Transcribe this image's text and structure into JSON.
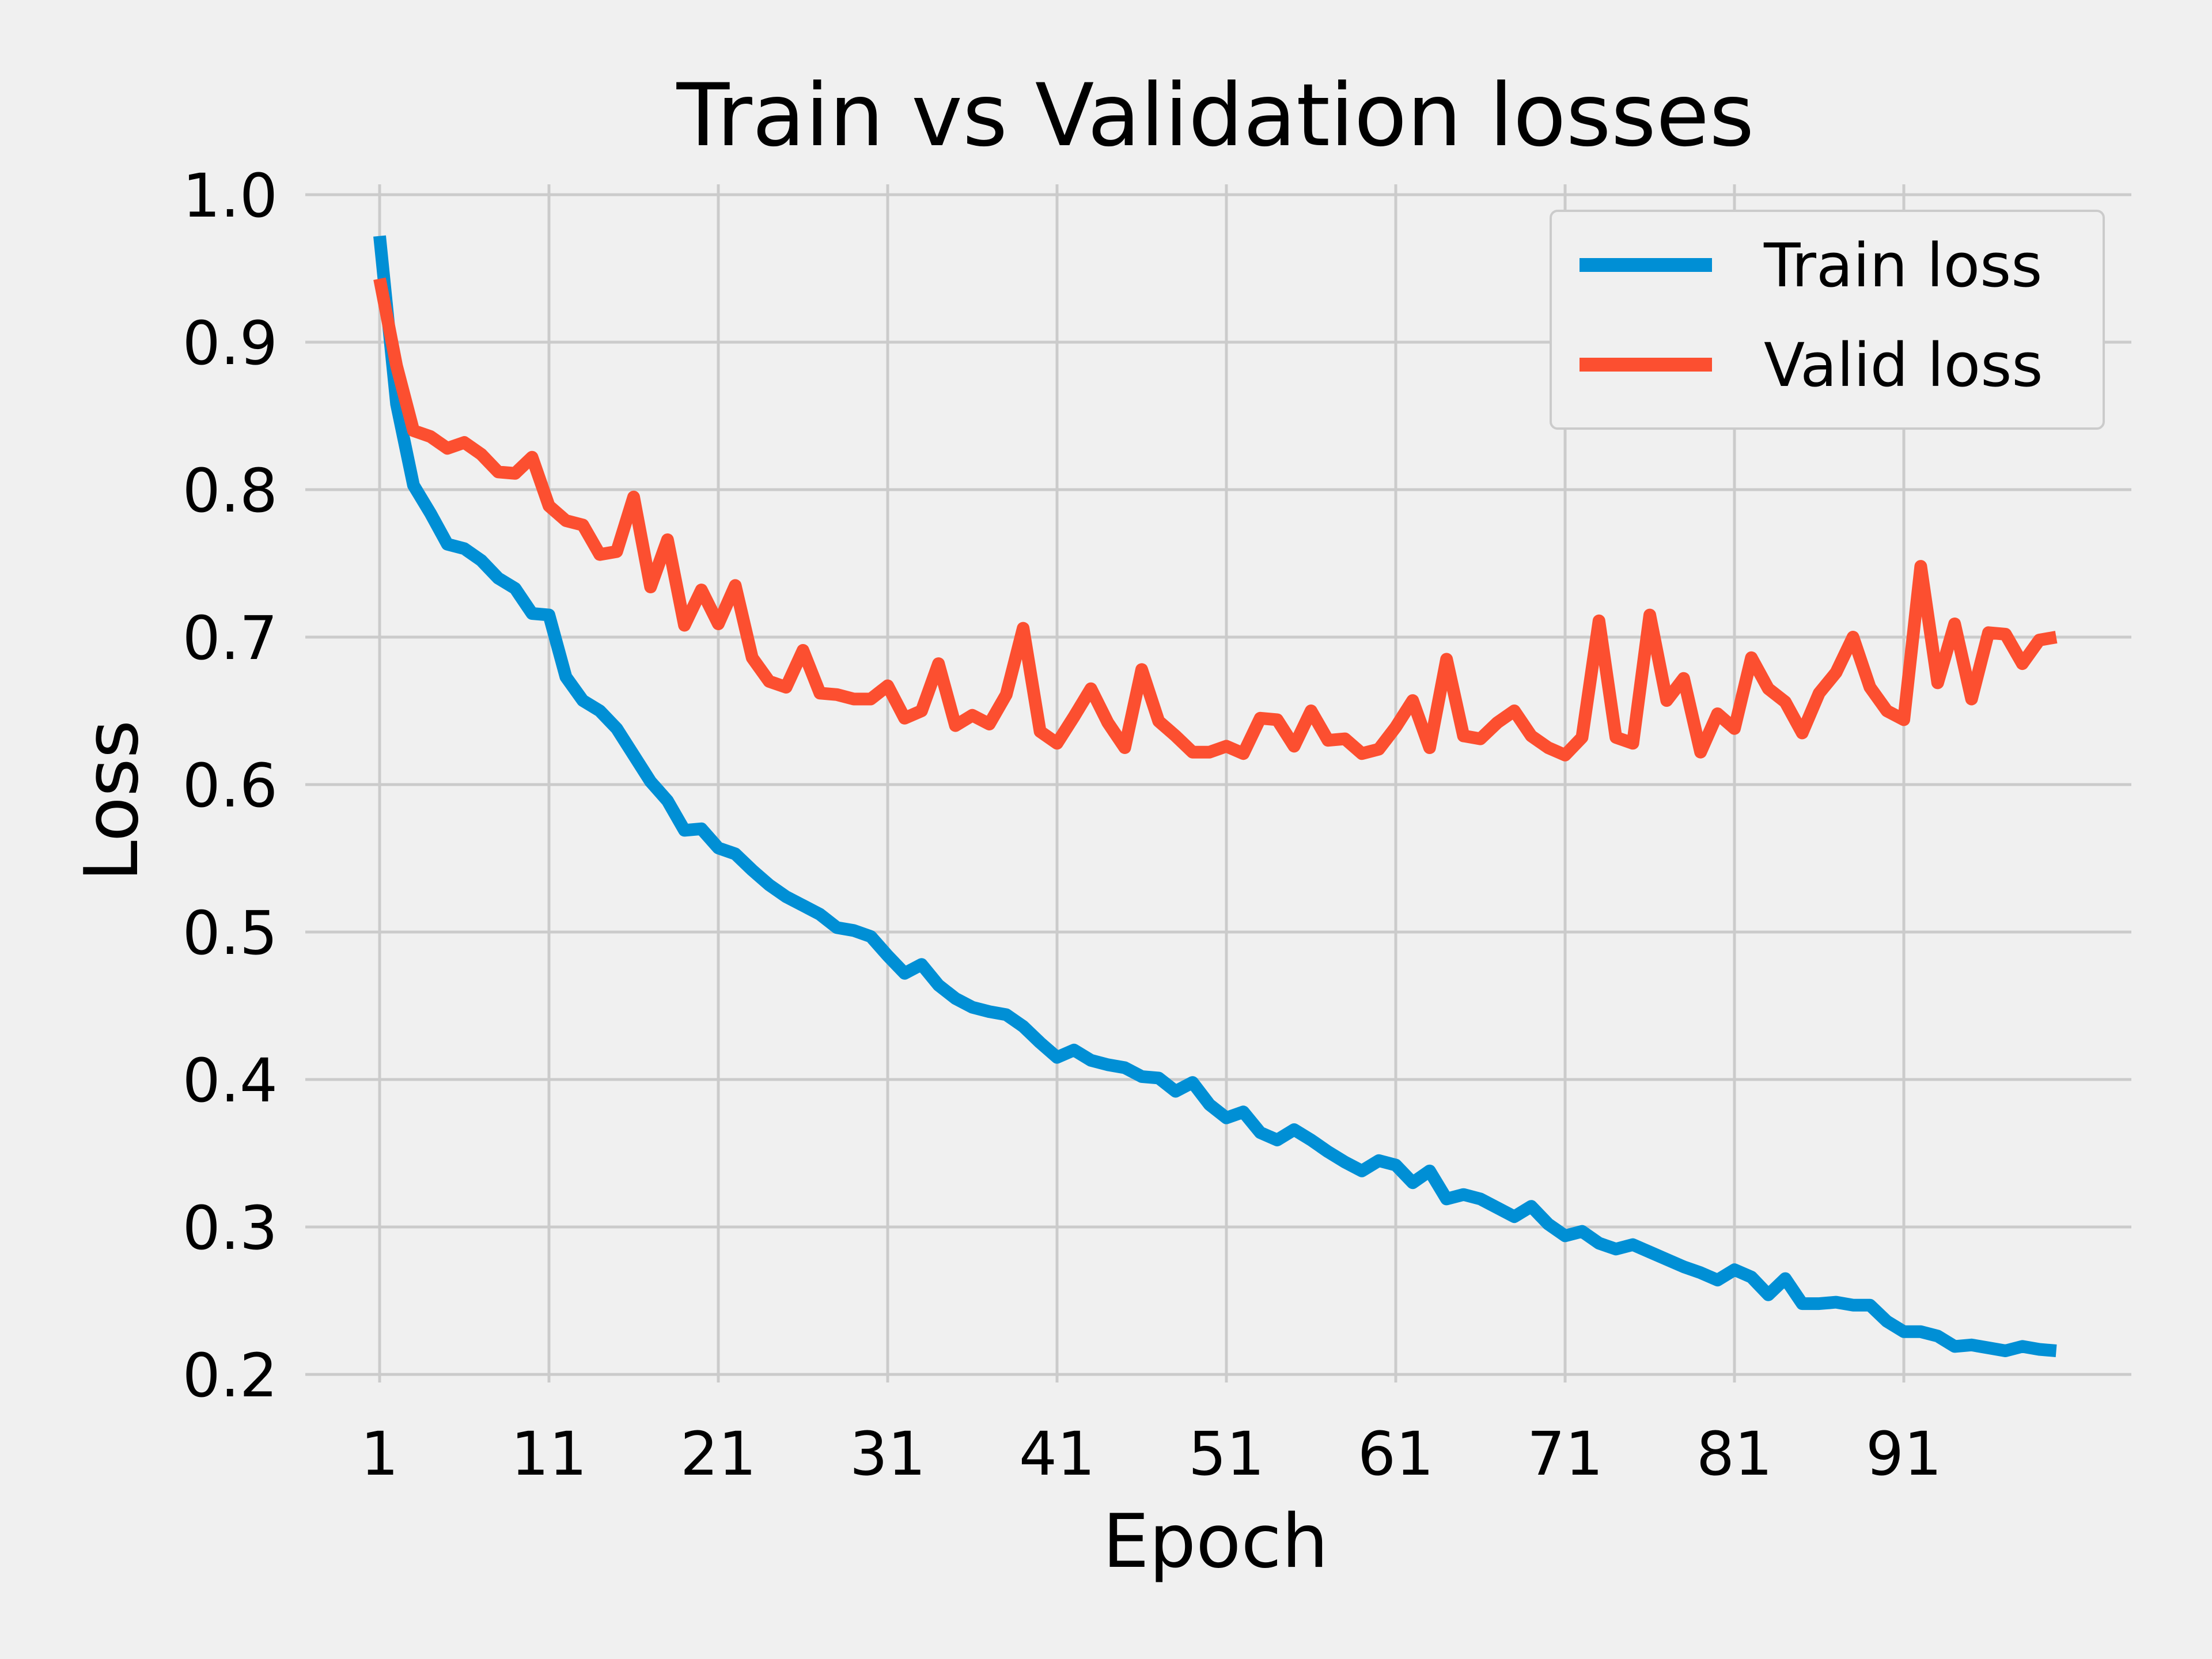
{
  "chart_data": {
    "type": "line",
    "title": "Train vs Validation losses",
    "xlabel": "Epoch",
    "ylabel": "Loss",
    "xlim": [
      1,
      100
    ],
    "ylim": [
      0.2,
      1.0
    ],
    "x_ticks": [
      1,
      11,
      21,
      31,
      41,
      51,
      61,
      71,
      81,
      91
    ],
    "y_ticks": [
      "0.2",
      "0.3",
      "0.4",
      "0.5",
      "0.6",
      "0.7",
      "0.8",
      "0.9",
      "1.0"
    ],
    "grid": true,
    "legend_position": "top-right",
    "series": [
      {
        "name": "Train loss",
        "color": "#008fd5",
        "values": [
          0.972,
          0.858,
          0.803,
          0.784,
          0.763,
          0.76,
          0.752,
          0.74,
          0.733,
          0.716,
          0.715,
          0.673,
          0.657,
          0.65,
          0.638,
          0.62,
          0.602,
          0.589,
          0.569,
          0.57,
          0.557,
          0.553,
          0.542,
          0.532,
          0.524,
          0.518,
          0.512,
          0.503,
          0.501,
          0.497,
          0.484,
          0.472,
          0.478,
          0.464,
          0.455,
          0.449,
          0.446,
          0.444,
          0.436,
          0.425,
          0.415,
          0.42,
          0.413,
          0.41,
          0.408,
          0.402,
          0.401,
          0.392,
          0.398,
          0.383,
          0.374,
          0.378,
          0.364,
          0.359,
          0.366,
          0.359,
          0.351,
          0.344,
          0.338,
          0.345,
          0.342,
          0.33,
          0.338,
          0.319,
          0.322,
          0.319,
          0.313,
          0.307,
          0.314,
          0.302,
          0.294,
          0.297,
          0.289,
          0.285,
          0.288,
          0.283,
          0.278,
          0.273,
          0.269,
          0.264,
          0.271,
          0.266,
          0.254,
          0.265,
          0.248,
          0.248,
          0.249,
          0.247,
          0.247,
          0.236,
          0.229,
          0.229,
          0.226,
          0.219,
          0.22,
          0.218,
          0.216,
          0.219,
          0.217,
          0.216
        ]
      },
      {
        "name": "Valid loss",
        "color": "#fc4f30",
        "values": [
          0.943,
          0.884,
          0.84,
          0.836,
          0.828,
          0.832,
          0.824,
          0.812,
          0.811,
          0.822,
          0.789,
          0.779,
          0.776,
          0.756,
          0.758,
          0.795,
          0.734,
          0.766,
          0.708,
          0.732,
          0.709,
          0.735,
          0.686,
          0.67,
          0.666,
          0.691,
          0.662,
          0.661,
          0.658,
          0.658,
          0.667,
          0.645,
          0.65,
          0.682,
          0.64,
          0.647,
          0.641,
          0.661,
          0.706,
          0.636,
          0.628,
          0.646,
          0.665,
          0.642,
          0.625,
          0.678,
          0.643,
          0.633,
          0.622,
          0.622,
          0.626,
          0.621,
          0.645,
          0.644,
          0.626,
          0.65,
          0.63,
          0.631,
          0.621,
          0.624,
          0.639,
          0.657,
          0.625,
          0.685,
          0.633,
          0.631,
          0.642,
          0.65,
          0.633,
          0.625,
          0.62,
          0.632,
          0.711,
          0.632,
          0.628,
          0.715,
          0.657,
          0.672,
          0.622,
          0.648,
          0.638,
          0.686,
          0.665,
          0.656,
          0.635,
          0.662,
          0.676,
          0.7,
          0.666,
          0.65,
          0.644,
          0.748,
          0.669,
          0.709,
          0.658,
          0.703,
          0.702,
          0.682,
          0.698,
          0.7
        ]
      }
    ]
  }
}
